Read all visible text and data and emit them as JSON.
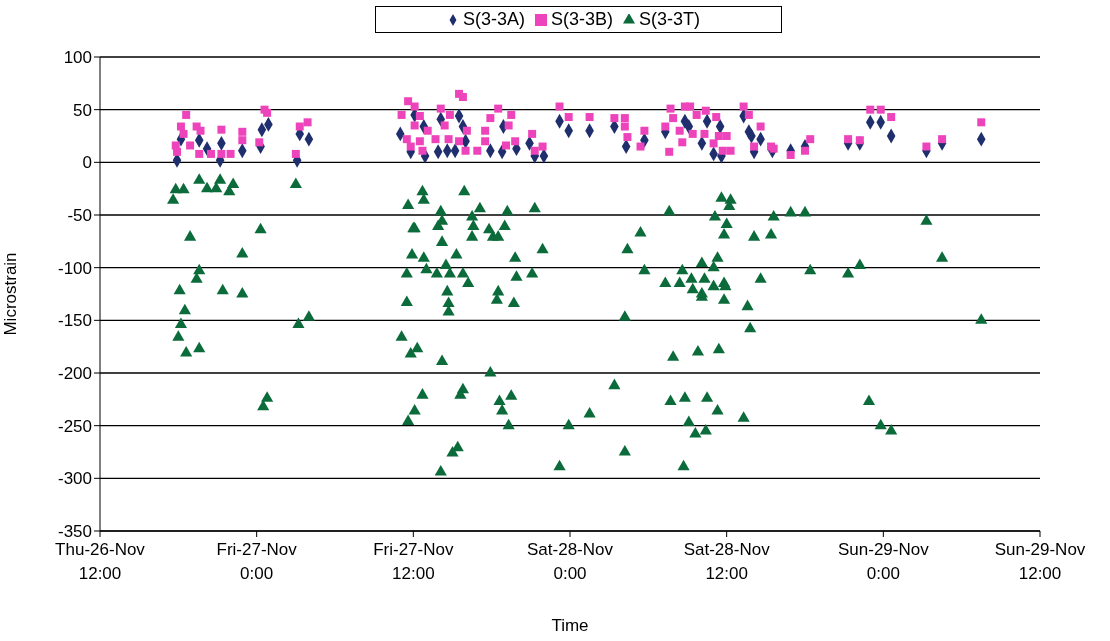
{
  "chart_data": {
    "type": "scatter",
    "xlabel": "Time",
    "ylabel": "Microstrain",
    "legend": "top",
    "grid": "y",
    "xlim": [
      "--11-26T12:00",
      "--11-29T12:00"
    ],
    "xticks": [
      {
        "value": "--11-26T12:00",
        "label": "Thu-26-Nov 12:00"
      },
      {
        "value": "--11-27T00:00",
        "label": "Fri-27-Nov 0:00"
      },
      {
        "value": "--11-27T12:00",
        "label": "Fri-27-Nov 12:00"
      },
      {
        "value": "--11-28T00:00",
        "label": "Sat-28-Nov 0:00"
      },
      {
        "value": "--11-28T12:00",
        "label": "Sat-28-Nov 12:00"
      },
      {
        "value": "--11-29T00:00",
        "label": "Sun-29-Nov 0:00"
      },
      {
        "value": "--11-29T12:00",
        "label": "Sun-29-Nov 12:00"
      }
    ],
    "ylim": [
      -350,
      100
    ],
    "yticks": [
      -350,
      -300,
      -250,
      -200,
      -150,
      -100,
      -50,
      0,
      50,
      100
    ],
    "series": [
      {
        "name": "S(3-3A)",
        "color": "#1f2f6e",
        "marker": "diamond",
        "x": [
          "--11-26T17:54",
          "--11-26T18:12",
          "--11-26T19:36",
          "--11-26T20:12",
          "--11-26T21:18",
          "--11-26T21:12",
          "--11-26T22:54",
          "--11-27T00:18",
          "--11-27T00:24",
          "--11-27T00:54",
          "--11-27T03:06",
          "--11-27T03:18",
          "--11-27T04:00",
          "--11-27T11:00",
          "--11-27T11:48",
          "--11-27T12:06",
          "--11-27T12:48",
          "--11-27T14:06",
          "--11-27T15:30",
          "--11-27T15:48",
          "--11-27T16:00",
          "--11-27T12:54",
          "--11-27T13:54",
          "--11-27T14:36",
          "--11-27T15:12",
          "--11-27T17:54",
          "--11-27T18:48",
          "--11-27T18:54",
          "--11-27T19:54",
          "--11-27T20:54",
          "--11-27T21:18",
          "--11-27T22:00",
          "--11-27T23:12",
          "--11-27T23:54",
          "--11-28T01:30",
          "--11-28T03:24",
          "--11-28T04:18",
          "--11-28T05:42",
          "--11-28T07:18",
          "--11-28T08:48",
          "--11-28T09:06",
          "--11-28T10:06",
          "--11-28T10:30",
          "--11-28T11:30",
          "--11-28T11:00",
          "--11-28T11:36",
          "--11-28T13:18",
          "--11-28T13:42",
          "--11-28T13:54",
          "--11-28T14:36",
          "--11-28T14:06",
          "--11-28T15:30",
          "--11-28T16:54",
          "--11-28T18:00",
          "--11-28T21:18",
          "--11-28T22:12",
          "--11-28T23:00",
          "--11-28T23:48",
          "--11-29T00:36",
          "--11-29T03:18",
          "--11-29T04:30",
          "--11-29T07:30"
        ],
        "values": [
          2,
          22,
          21,
          13,
          18,
          2,
          11,
          15,
          31,
          36,
          2,
          27,
          22,
          27,
          10,
          45,
          34,
          41,
          44,
          34,
          20,
          6,
          10,
          11,
          11,
          11,
          10,
          34,
          13,
          18,
          6,
          6,
          39,
          30,
          30,
          34,
          15,
          21,
          29,
          39,
          34,
          18,
          39,
          34,
          8,
          6,
          44,
          29,
          25,
          22,
          10,
          11,
          11,
          15,
          18,
          18,
          38,
          38,
          25,
          11,
          18,
          22
        ]
      },
      {
        "name": "S(3-3B)",
        "color": "#ee44bb",
        "marker": "square",
        "x": [
          "--11-26T18:36",
          "--11-26T18:12",
          "--11-26T17:48",
          "--11-26T17:54",
          "--11-26T18:24",
          "--11-26T18:54",
          "--11-26T19:24",
          "--11-26T19:42",
          "--11-26T19:36",
          "--11-26T20:30",
          "--11-26T21:18",
          "--11-26T21:18",
          "--11-26T22:00",
          "--11-26T22:54",
          "--11-26T22:54",
          "--11-27T00:12",
          "--11-27T00:36",
          "--11-27T00:48",
          "--11-27T03:00",
          "--11-27T03:18",
          "--11-27T03:54",
          "--11-27T11:36",
          "--11-27T11:06",
          "--11-27T11:30",
          "--11-27T11:48",
          "--11-27T12:06",
          "--11-27T15:30",
          "--11-27T15:48",
          "--11-27T12:06",
          "--11-27T14:06",
          "--11-27T18:30",
          "--11-27T12:30",
          "--11-27T14:48",
          "--11-27T19:30",
          "--11-27T17:54",
          "--11-27T13:06",
          "--11-27T14:24",
          "--11-27T16:06",
          "--11-27T17:30",
          "--11-27T19:18",
          "--11-27T12:30",
          "--11-27T13:42",
          "--11-27T14:42",
          "--11-27T15:30",
          "--11-27T17:30",
          "--11-27T19:48",
          "--11-27T12:42",
          "--11-27T16:00",
          "--11-27T16:54",
          "--11-27T19:06",
          "--11-27T21:06",
          "--11-27T21:18",
          "--11-27T21:54",
          "--11-27T23:12",
          "--11-27T23:54",
          "--11-28T01:30",
          "--11-28T03:24",
          "--11-28T04:12",
          "--11-28T04:12",
          "--11-28T04:24",
          "--11-28T05:24",
          "--11-28T05:42",
          "--11-28T07:18",
          "--11-28T07:36",
          "--11-28T07:42",
          "--11-28T07:54",
          "--11-28T08:24",
          "--11-28T08:36",
          "--11-28T08:48",
          "--11-28T09:12",
          "--11-28T09:42",
          "--11-28T09:24",
          "--11-28T10:18",
          "--11-28T10:24",
          "--11-28T11:12",
          "--11-28T11:24",
          "--11-28T11:00",
          "--11-28T12:00",
          "--11-28T12:18",
          "--11-28T11:42",
          "--11-28T13:18",
          "--11-28T13:42",
          "--11-28T14:36",
          "--11-28T14:06",
          "--11-28T15:24",
          "--11-28T15:36",
          "--11-28T16:54",
          "--11-28T18:00",
          "--11-28T18:24",
          "--11-28T21:18",
          "--11-28T22:12",
          "--11-28T23:00",
          "--11-28T23:48",
          "--11-29T00:36",
          "--11-29T03:18",
          "--11-29T04:30",
          "--11-29T07:30"
        ],
        "values": [
          45,
          34,
          16,
          10,
          27,
          16,
          34,
          30,
          8,
          8,
          31,
          8,
          8,
          29,
          21,
          19,
          50,
          47,
          8,
          34,
          38,
          58,
          45,
          22,
          15,
          35,
          65,
          62,
          53,
          51,
          51,
          44,
          45,
          45,
          42,
          30,
          35,
          30,
          30,
          35,
          20,
          22,
          22,
          20,
          20,
          20,
          11,
          11,
          11,
          16,
          27,
          11,
          15,
          53,
          43,
          43,
          42,
          42,
          34,
          24,
          15,
          30,
          34,
          10,
          51,
          42,
          30,
          19,
          53,
          53,
          45,
          27,
          27,
          49,
          43,
          25,
          18,
          25,
          11,
          11,
          53,
          45,
          34,
          15,
          15,
          13,
          7,
          11,
          22,
          22,
          21,
          50,
          50,
          43,
          15,
          22,
          38
        ]
      },
      {
        "name": "S(3-3T)",
        "color": "#0b6b3a",
        "marker": "triangle",
        "x": [
          "--11-26T17:48",
          "--11-26T17:36",
          "--11-26T18:24",
          "--11-26T19:36",
          "--11-26T20:12",
          "--11-26T21:12",
          "--11-26T20:54",
          "--11-26T21:54",
          "--11-26T22:12",
          "--11-27T03:00",
          "--11-26T18:54",
          "--11-27T00:18",
          "--11-26T22:54",
          "--11-26T19:36",
          "--11-26T19:24",
          "--11-26T18:06",
          "--11-26T21:24",
          "--11-26T22:54",
          "--11-26T18:30",
          "--11-26T18:12",
          "--11-26T18:00",
          "--11-26T18:36",
          "--11-26T19:36",
          "--11-27T03:12",
          "--11-27T04:00",
          "--11-27T00:30",
          "--11-27T00:48",
          "--11-27T11:30",
          "--11-27T11:06",
          "--11-27T11:48",
          "--11-27T12:18",
          "--11-27T14:12",
          "--11-27T14:42",
          "--11-27T14:42",
          "--11-27T18:24",
          "--11-27T19:42",
          "--11-27T12:42",
          "--11-27T12:06",
          "--11-27T11:36",
          "--11-27T15:48",
          "--11-27T15:36",
          "--11-27T17:54",
          "--11-27T18:36",
          "--11-27T19:30",
          "--11-27T18:48",
          "--11-27T19:18",
          "--11-27T23:54",
          "--11-27T15:24",
          "--11-27T15:00",
          "--11-27T14:06",
          "--11-27T23:12",
          "--11-28T04:12",
          "--11-28T13:48",
          "--11-28T13:36",
          "--11-28T11:48",
          "--11-28T10:06",
          "--11-28T07:54",
          "--11-28T09:48",
          "--11-28T11:24",
          "--11-29T07:30",
          "--11-28T03:24",
          "--11-28T01:30",
          "--11-28T04:12",
          "--11-28T07:42",
          "--11-28T08:48",
          "--11-28T10:30",
          "--11-28T11:18",
          "--11-28T13:18",
          "--11-28T09:06",
          "--11-28T09:36",
          "--11-28T10:24",
          "--11-28T08:42",
          "--11-28T22:54",
          "--11-28T23:48",
          "--11-29T00:36",
          "--11-27T12:42",
          "--11-27T12:48",
          "--11-27T15:54",
          "--11-27T14:06",
          "--11-27T13:54",
          "--11-27T14:12",
          "--11-27T17:06",
          "--11-27T16:30",
          "--11-27T16:36",
          "--11-27T19:12",
          "--11-27T19:00",
          "--11-27T21:18",
          "--11-27T17:48",
          "--11-27T18:06",
          "--11-27T18:30",
          "--11-27T16:30",
          "--11-27T14:12",
          "--11-27T21:54",
          "--11-27T12:06",
          "--11-27T12:48",
          "--11-27T15:18",
          "--11-27T19:48",
          "--11-27T13:00",
          "--11-27T13:48",
          "--11-27T14:30",
          "--11-27T14:48",
          "--11-27T15:48",
          "--11-27T16:12",
          "--11-27T19:54",
          "--11-27T21:06",
          "--11-27T14:36",
          "--11-27T18:30",
          "--11-28T05:24",
          "--11-28T04:24",
          "--11-28T05:42",
          "--11-28T07:36",
          "--11-28T07:18",
          "--11-28T08:24",
          "--11-28T08:36",
          "--11-28T09:18",
          "--11-28T09:24",
          "--11-28T10:06",
          "--11-28T10:18",
          "--11-28T10:06",
          "--11-28T11:00",
          "--11-28T11:48",
          "--11-28T11:54",
          "--11-28T11:06",
          "--11-28T11:18",
          "--11-28T11:36",
          "--11-28T12:18",
          "--11-28T12:12",
          "--11-28T12:00",
          "--11-28T11:48",
          "--11-28T11:00",
          "--11-28T15:36",
          "--11-28T16:54",
          "--11-28T18:00",
          "--11-28T15:24",
          "--11-28T14:06",
          "--11-28T18:24",
          "--11-28T14:36",
          "--11-28T21:18",
          "--11-28T22:12",
          "--11-29T03:18",
          "--11-29T04:30",
          "--11-27T11:36",
          "--11-27T12:00",
          "--11-27T11:54",
          "--11-27T11:30"
        ],
        "values": [
          -26,
          -36,
          -26,
          -17,
          -25,
          -17,
          -25,
          -28,
          -21,
          -21,
          -71,
          -64,
          -87,
          -103,
          -111,
          -122,
          -122,
          -125,
          -141,
          -154,
          -166,
          -181,
          -177,
          -154,
          -147,
          -232,
          -224,
          -133,
          -166,
          -182,
          -177,
          -189,
          -134,
          -142,
          -131,
          -134,
          -221,
          -236,
          -246,
          -216,
          -221,
          -200,
          -227,
          -222,
          -236,
          -250,
          -250,
          -271,
          -276,
          -294,
          -289,
          -147,
          -158,
          -137,
          -131,
          -128,
          -185,
          -180,
          -178,
          -150,
          -212,
          -239,
          -275,
          -227,
          -224,
          -224,
          -236,
          -243,
          -247,
          -258,
          -255,
          -289,
          -227,
          -250,
          -255,
          -28,
          -36,
          -28,
          -47,
          -61,
          -56,
          -44,
          -52,
          -61,
          -47,
          -61,
          -44,
          -64,
          -71,
          -71,
          -71,
          -76,
          -83,
          -63,
          -91,
          -88,
          -91,
          -102,
          -106,
          -98,
          -106,
          -106,
          -115,
          -109,
          -106,
          -123,
          -123,
          -67,
          -83,
          -103,
          -47,
          -115,
          -115,
          -103,
          -111,
          -121,
          -96,
          -111,
          -125,
          -118,
          -115,
          -118,
          -52,
          -91,
          -34,
          -36,
          -42,
          -59,
          -69,
          -100,
          -52,
          -48,
          -48,
          -69,
          -71,
          -103,
          -111,
          -106,
          -98,
          -56,
          -91,
          -41,
          -63,
          -88,
          -106
        ]
      }
    ]
  }
}
